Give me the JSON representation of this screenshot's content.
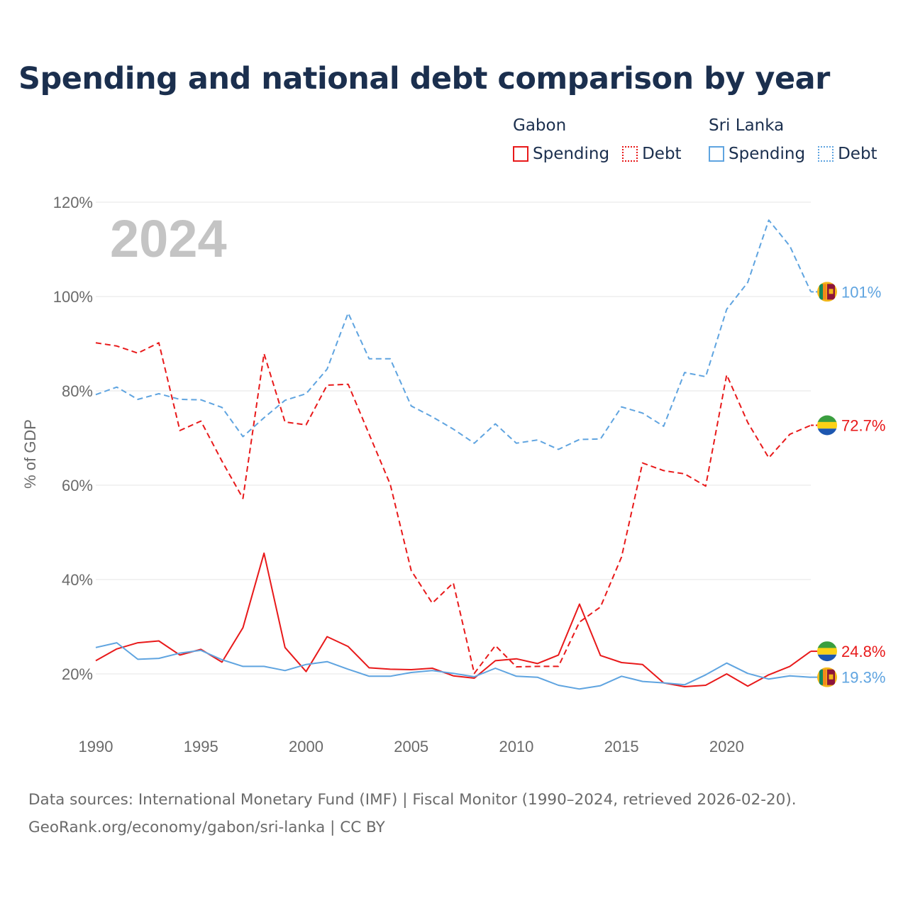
{
  "title": "Spending and national debt comparison by year",
  "legend": {
    "groups": [
      {
        "name": "Gabon",
        "color": "#e8191a",
        "items": [
          "Spending",
          "Debt"
        ]
      },
      {
        "name": "Sri Lanka",
        "color": "#5fa4e0",
        "items": [
          "Spending",
          "Debt"
        ]
      }
    ]
  },
  "year_watermark": "2024",
  "footer": {
    "source": "Data sources: International Monetary Fund (IMF) | Fiscal Monitor (1990–2024, retrieved 2026-02-20).",
    "credit": "GeoRank.org/economy/gabon/sri-lanka | CC BY"
  },
  "chart_data": {
    "type": "line",
    "title": "Spending and national debt comparison by year",
    "xlabel": "",
    "ylabel": "% of GDP",
    "xlim": [
      1990,
      2024
    ],
    "ylim": [
      10,
      120
    ],
    "x_ticks": [
      1990,
      1995,
      2000,
      2005,
      2010,
      2015,
      2020
    ],
    "x_tick_labels": [
      "1990",
      "1995",
      "2000",
      "2005",
      "2010",
      "2015",
      "2020"
    ],
    "y_ticks": [
      20,
      40,
      60,
      80,
      100,
      120
    ],
    "y_tick_labels": [
      "20%",
      "40%",
      "60%",
      "80%",
      "100%",
      "120%"
    ],
    "grid": true,
    "x": [
      1990,
      1991,
      1992,
      1993,
      1994,
      1995,
      1996,
      1997,
      1998,
      1999,
      2000,
      2001,
      2002,
      2003,
      2004,
      2005,
      2006,
      2007,
      2008,
      2009,
      2010,
      2011,
      2012,
      2013,
      2014,
      2015,
      2016,
      2017,
      2018,
      2019,
      2020,
      2021,
      2022,
      2023,
      2024
    ],
    "series": [
      {
        "name": "Gabon Spending",
        "country": "Gabon",
        "metric": "Spending",
        "color": "#e8191a",
        "dash": "solid",
        "end_label": "24.8%",
        "values": [
          22.8,
          25.3,
          26.6,
          27.0,
          24.0,
          25.2,
          22.5,
          29.8,
          45.6,
          25.6,
          20.5,
          27.9,
          25.8,
          21.3,
          21.0,
          20.9,
          21.2,
          19.6,
          19.1,
          22.8,
          23.2,
          22.2,
          24.0,
          34.8,
          23.9,
          22.4,
          22.0,
          18.1,
          17.3,
          17.6,
          20.0,
          17.4,
          19.8,
          21.6,
          24.8
        ]
      },
      {
        "name": "Gabon Debt",
        "country": "Gabon",
        "metric": "Debt",
        "color": "#e8191a",
        "dash": "dashed",
        "end_label": "72.7%",
        "values": [
          90.2,
          89.5,
          88.0,
          90.2,
          71.6,
          73.6,
          65.1,
          57.2,
          87.9,
          73.4,
          72.8,
          81.2,
          81.4,
          70.8,
          60.2,
          41.9,
          35.0,
          39.3,
          20.1,
          26.0,
          21.5,
          21.6,
          21.6,
          31.0,
          34.2,
          44.8,
          64.7,
          63.1,
          62.4,
          59.8,
          83.4,
          73.3,
          65.8,
          70.8,
          72.7
        ]
      },
      {
        "name": "Sri Lanka Spending",
        "country": "Sri Lanka",
        "metric": "Spending",
        "color": "#5fa4e0",
        "dash": "solid",
        "end_label": "19.3%",
        "values": [
          25.6,
          26.6,
          23.1,
          23.3,
          24.4,
          25.0,
          23.0,
          21.6,
          21.6,
          20.7,
          22.0,
          22.6,
          21.0,
          19.5,
          19.5,
          20.3,
          20.7,
          20.1,
          19.4,
          21.2,
          19.5,
          19.3,
          17.6,
          16.8,
          17.5,
          19.5,
          18.4,
          18.1,
          17.7,
          19.8,
          22.3,
          20.1,
          18.9,
          19.6,
          19.3
        ]
      },
      {
        "name": "Sri Lanka Debt",
        "country": "Sri Lanka",
        "metric": "Debt",
        "color": "#5fa4e0",
        "dash": "dashed",
        "end_label": "101%",
        "values": [
          79.2,
          80.8,
          78.2,
          79.4,
          78.2,
          78.1,
          76.5,
          70.3,
          74.3,
          78.0,
          79.4,
          84.6,
          96.5,
          86.8,
          86.8,
          76.8,
          74.5,
          71.9,
          68.9,
          73.0,
          68.9,
          69.6,
          67.6,
          69.7,
          69.8,
          76.6,
          75.3,
          72.5,
          83.9,
          83.0,
          97.3,
          103.0,
          116.2,
          110.7,
          101.0
        ]
      }
    ]
  }
}
